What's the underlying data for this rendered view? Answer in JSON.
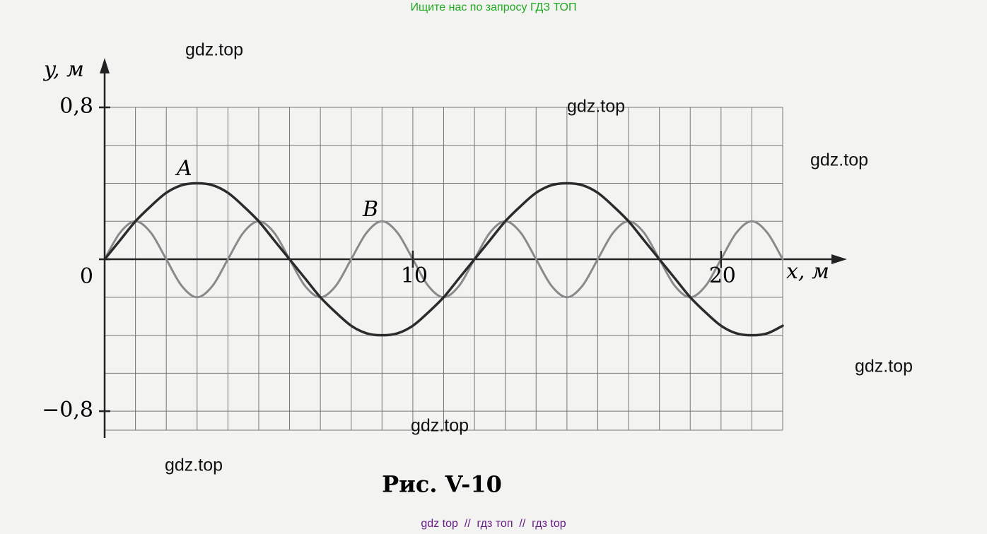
{
  "header": "Ищите нас по запросу ГДЗ ТОП",
  "footer": "gdz top  //  гдз топ  //  гдз top",
  "watermarks": [
    "gdz.top",
    "gdz.top",
    "gdz.top",
    "gdz.top",
    "gdz.top",
    "gdz.top"
  ],
  "chart_data": {
    "type": "line",
    "caption": "Рис. V-10",
    "y_label": "y, м",
    "x_label": "x, м",
    "annotations": [
      "A",
      "B"
    ],
    "x": [
      0,
      0.5,
      1,
      1.5,
      2,
      2.5,
      3,
      3.5,
      4,
      4.5,
      5,
      5.5,
      6,
      6.5,
      7,
      7.5,
      8,
      8.5,
      9,
      9.5,
      10,
      10.5,
      11,
      11.5,
      12,
      12.5,
      13,
      13.5,
      14,
      14.5,
      15,
      15.5,
      16,
      16.5,
      17,
      17.5,
      18,
      18.5,
      19,
      19.5,
      20,
      20.5,
      21,
      21.5,
      22
    ],
    "series": [
      {
        "color": "#2b2b2b",
        "values": [
          0,
          0.1,
          0.2,
          0.28,
          0.35,
          0.39,
          0.4,
          0.39,
          0.35,
          0.28,
          0.2,
          0.1,
          0,
          -0.1,
          -0.2,
          -0.28,
          -0.35,
          -0.39,
          -0.4,
          -0.39,
          -0.35,
          -0.28,
          -0.2,
          -0.1,
          0,
          0.1,
          0.2,
          0.28,
          0.35,
          0.39,
          0.4,
          0.39,
          0.35,
          0.28,
          0.2,
          0.1,
          0,
          -0.1,
          -0.2,
          -0.28,
          -0.35,
          -0.39,
          -0.4,
          -0.39,
          -0.35
        ]
      },
      {
        "color": "#8a8a8a",
        "values": [
          0,
          0.14,
          0.2,
          0.14,
          0,
          -0.14,
          -0.2,
          -0.14,
          0,
          0.14,
          0.2,
          0.14,
          0,
          -0.14,
          -0.2,
          -0.14,
          0,
          0.14,
          0.2,
          0.14,
          0,
          -0.14,
          -0.2,
          -0.14,
          0,
          0.14,
          0.2,
          0.14,
          0,
          -0.14,
          -0.2,
          -0.14,
          0,
          0.14,
          0.2,
          0.14,
          0,
          -0.14,
          -0.2,
          -0.14,
          0,
          0.14,
          0.2,
          0.14,
          0
        ]
      }
    ],
    "xlim": [
      0,
      22
    ],
    "ylim": [
      -0.9,
      0.8
    ],
    "xticks": [
      10,
      20
    ],
    "yticks": [
      {
        "value": 0.8,
        "label": "0,8"
      },
      0,
      {
        "value": -0.8,
        "label": "−0,8"
      }
    ],
    "grid": true,
    "minor_grid": {
      "x": 1,
      "y": 0.2
    }
  }
}
